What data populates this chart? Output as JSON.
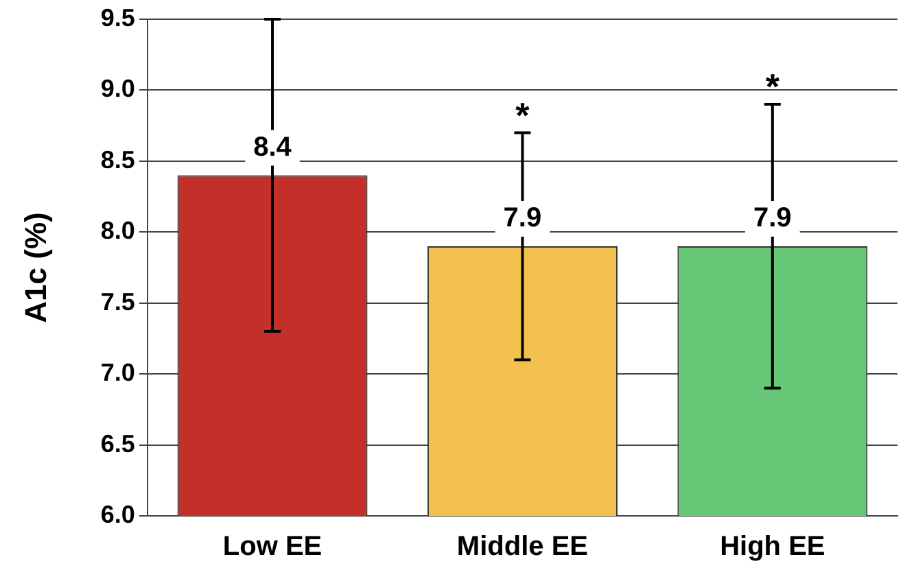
{
  "chart_data": {
    "type": "bar",
    "ylabel": "A1c (%)",
    "categories": [
      "Low EE",
      "Middle EE",
      "High EE"
    ],
    "values": [
      8.4,
      7.9,
      7.9
    ],
    "colors": [
      "#c3302a",
      "#f2c04c",
      "#66c776"
    ],
    "errors": [
      1.1,
      0.8,
      1.0
    ],
    "data_labels": true,
    "ylim": [
      6,
      9.5
    ],
    "yticks": [
      {
        "value": 6,
        "label": "6.0"
      },
      {
        "value": 6.5,
        "label": "6.5"
      },
      {
        "value": 7,
        "label": "7.0"
      },
      {
        "value": 7.5,
        "label": "7.5"
      },
      {
        "value": 8,
        "label": "8.0"
      },
      {
        "value": 8.5,
        "label": "8.5"
      },
      {
        "value": 9,
        "label": "9.0"
      },
      {
        "value": 9.5,
        "label": "9.5"
      }
    ],
    "grid": "y",
    "legend": false,
    "annotations": [
      {
        "text": "*",
        "x": "Middle EE",
        "y": 8.7
      },
      {
        "text": "*",
        "x": "High EE",
        "y": 8.9
      }
    ]
  }
}
